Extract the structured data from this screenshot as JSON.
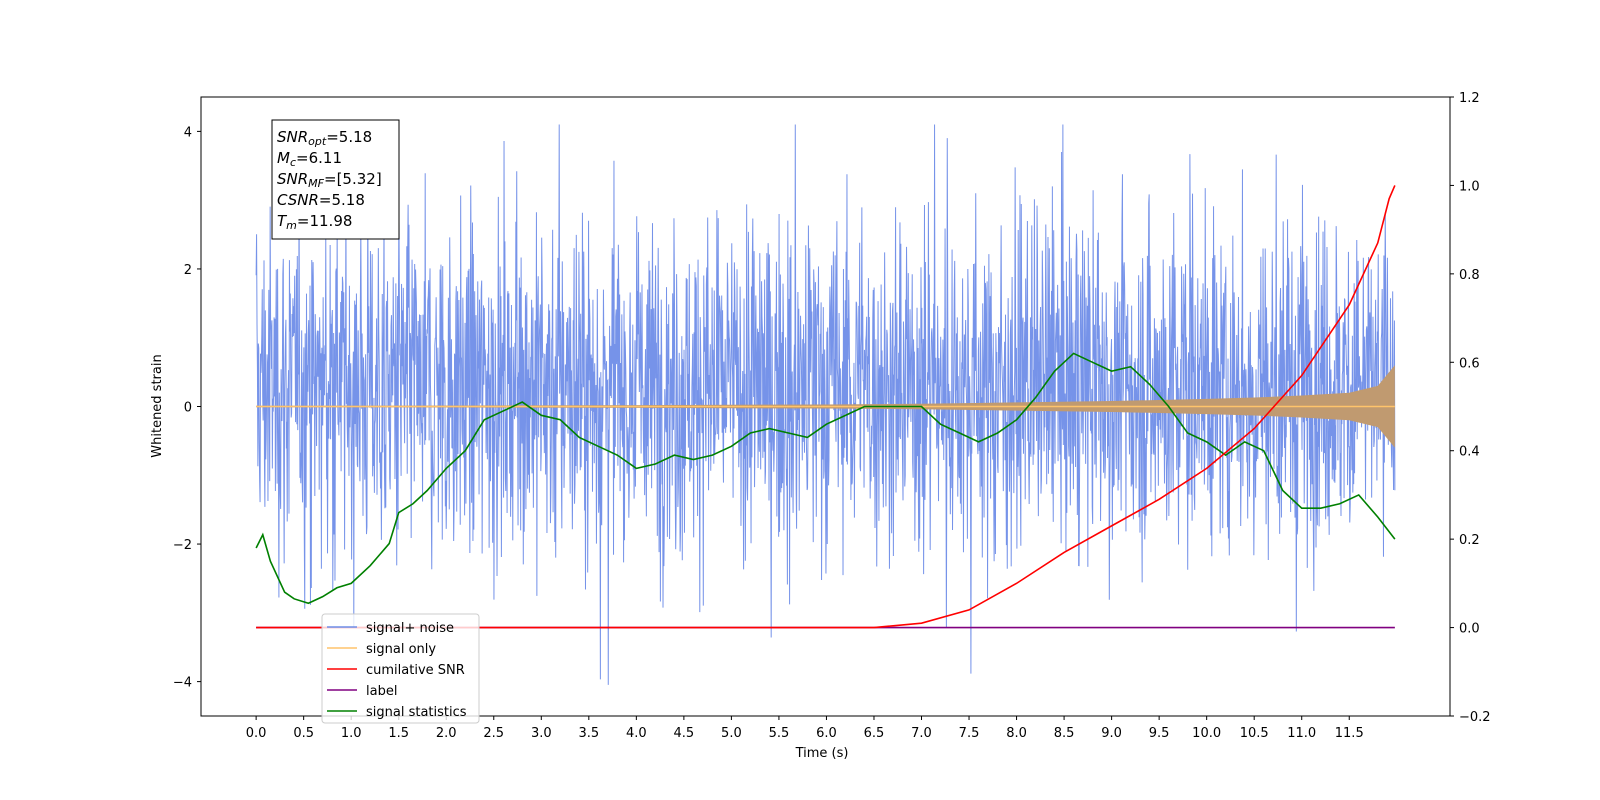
{
  "chart_data": {
    "type": "line",
    "xlabel": "Time (s)",
    "ylabel": "Whitened strain",
    "x_ticks": [
      "0.0",
      "0.5",
      "1.0",
      "1.5",
      "2.0",
      "2.5",
      "3.0",
      "3.5",
      "4.0",
      "4.5",
      "5.0",
      "5.5",
      "6.0",
      "6.5",
      "7.0",
      "7.5",
      "8.0",
      "8.5",
      "9.0",
      "9.5",
      "10.0",
      "10.5",
      "11.0",
      "11.5"
    ],
    "xlim": [
      -0.58,
      12.56
    ],
    "ylim_left": [
      -4.5,
      4.5
    ],
    "ylim_right": [
      -0.2,
      1.2
    ],
    "y_ticks_left": [
      "4",
      "2",
      "0",
      "−2",
      "−4"
    ],
    "y_ticks_right": [
      "1.2",
      "1.0",
      "0.8",
      "0.6",
      "0.4",
      "0.2",
      "0.0",
      "−0.2"
    ],
    "legend": {
      "placement": "lower-left",
      "entries": [
        {
          "label": "signal+ noise",
          "color": "#6f8de8"
        },
        {
          "label": "signal only",
          "color": "#ffc46b"
        },
        {
          "label": "cumilative SNR",
          "color": "#ff0000"
        },
        {
          "label": "label",
          "color": "#800080"
        },
        {
          "label": "signal statistics",
          "color": "#008000"
        }
      ]
    },
    "annotations": [
      {
        "label": "SNR",
        "sub": "opt",
        "value": "=5.18"
      },
      {
        "label": "M",
        "sub": "c",
        "value": "=6.11"
      },
      {
        "label": "SNR",
        "sub": "MF",
        "value": "=[5.32]"
      },
      {
        "label": "CSNR",
        "sub": "",
        "value": "=5.18"
      },
      {
        "label": "T",
        "sub": "m",
        "value": "=11.98"
      }
    ],
    "series": [
      {
        "name": "signal+ noise",
        "axis": "left",
        "color": "#6f8de8",
        "description": "noise band, time 0 to 11.98 s",
        "x_range": [
          0.0,
          11.98
        ],
        "typical_range": [
          -1.6,
          2.2
        ],
        "extremes": {
          "max": 4.1,
          "min": -4.1
        }
      },
      {
        "name": "signal only",
        "axis": "left",
        "color": "#ffc46b",
        "envelope_x": [
          0.0,
          2.0,
          4.0,
          6.0,
          7.0,
          8.0,
          9.0,
          10.0,
          10.5,
          11.0,
          11.5,
          11.8,
          11.98
        ],
        "envelope_amp": [
          0.01,
          0.015,
          0.02,
          0.03,
          0.04,
          0.06,
          0.08,
          0.11,
          0.13,
          0.16,
          0.2,
          0.3,
          0.6
        ]
      },
      {
        "name": "cumilative SNR",
        "axis": "right",
        "color": "#ff0000",
        "x": [
          0.0,
          6.5,
          7.0,
          7.5,
          8.0,
          8.5,
          9.0,
          9.5,
          10.0,
          10.5,
          11.0,
          11.5,
          11.8,
          11.92,
          11.98
        ],
        "values": [
          0.0,
          0.0,
          0.01,
          0.04,
          0.1,
          0.17,
          0.23,
          0.29,
          0.36,
          0.45,
          0.57,
          0.73,
          0.87,
          0.97,
          1.0
        ]
      },
      {
        "name": "label",
        "axis": "right",
        "color": "#800080",
        "x": [
          0.0,
          11.98
        ],
        "values": [
          0.0,
          0.0
        ]
      },
      {
        "name": "signal statistics",
        "axis": "right",
        "color": "#008000",
        "x": [
          0.0,
          0.07,
          0.15,
          0.3,
          0.4,
          0.55,
          0.7,
          0.85,
          1.0,
          1.2,
          1.4,
          1.5,
          1.65,
          1.8,
          2.0,
          2.2,
          2.4,
          2.6,
          2.8,
          3.0,
          3.2,
          3.4,
          3.6,
          3.8,
          4.0,
          4.2,
          4.4,
          4.6,
          4.8,
          5.0,
          5.2,
          5.4,
          5.6,
          5.8,
          6.0,
          6.2,
          6.4,
          6.6,
          6.8,
          7.0,
          7.2,
          7.4,
          7.6,
          7.8,
          8.0,
          8.2,
          8.4,
          8.6,
          8.8,
          9.0,
          9.2,
          9.4,
          9.6,
          9.8,
          10.0,
          10.2,
          10.4,
          10.6,
          10.8,
          11.0,
          11.2,
          11.4,
          11.6,
          11.8,
          11.98
        ],
        "values": [
          0.18,
          0.21,
          0.15,
          0.08,
          0.065,
          0.055,
          0.07,
          0.09,
          0.1,
          0.14,
          0.19,
          0.26,
          0.28,
          0.31,
          0.36,
          0.4,
          0.47,
          0.49,
          0.51,
          0.48,
          0.47,
          0.43,
          0.41,
          0.39,
          0.36,
          0.37,
          0.39,
          0.38,
          0.39,
          0.41,
          0.44,
          0.45,
          0.44,
          0.43,
          0.46,
          0.48,
          0.5,
          0.5,
          0.5,
          0.5,
          0.46,
          0.44,
          0.42,
          0.44,
          0.47,
          0.52,
          0.58,
          0.62,
          0.6,
          0.58,
          0.59,
          0.55,
          0.5,
          0.44,
          0.42,
          0.39,
          0.42,
          0.4,
          0.31,
          0.27,
          0.27,
          0.28,
          0.3,
          0.25,
          0.2
        ]
      }
    ]
  }
}
